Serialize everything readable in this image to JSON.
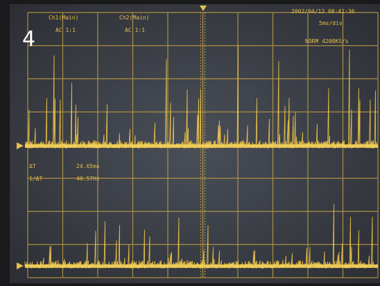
{
  "label": "4",
  "channels": [
    {
      "name": "Ch1(Main)",
      "coupling": "AC 1:1"
    },
    {
      "name": "Ch2(Main)",
      "coupling": "AC 1:1"
    }
  ],
  "timestamp": "2002/04/12 08:41:36",
  "timebase": "5ms/div",
  "sample_rate": "NORM 4200KS/s",
  "measurements": [
    {
      "label": "ΔT",
      "value": "24.65ms"
    },
    {
      "label": "1/ΔT",
      "value": "40.57Hz"
    }
  ]
}
